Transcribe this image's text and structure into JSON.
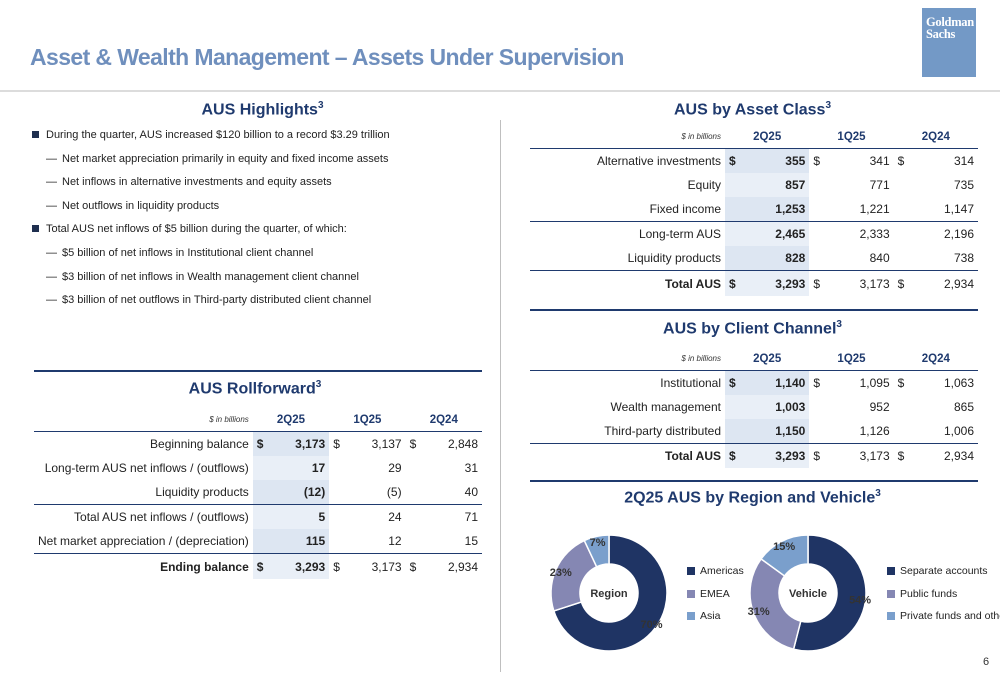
{
  "header": {
    "title": "Asset & Wealth Management – Assets Under Supervision",
    "logo_line1": "Goldman",
    "logo_line2": "Sachs"
  },
  "highlights": {
    "title": "AUS Highlights",
    "sup": "3",
    "items": [
      {
        "level": 1,
        "text": "During the quarter, AUS increased $120 billion to a record $3.29 trillion"
      },
      {
        "level": 2,
        "text": "Net market appreciation primarily in equity and fixed income assets"
      },
      {
        "level": 2,
        "text": "Net inflows in alternative investments and equity assets"
      },
      {
        "level": 2,
        "text": "Net outflows in liquidity products"
      },
      {
        "level": 1,
        "text": "Total AUS net inflows of $5 billion during the quarter, of which:"
      },
      {
        "level": 2,
        "text": "$5 billion of net inflows in Institutional client channel"
      },
      {
        "level": 2,
        "text": "$3 billion of net inflows in Wealth management client channel"
      },
      {
        "level": 2,
        "text": "$3 billion of net outflows in Third-party distributed client channel"
      }
    ]
  },
  "rollforward": {
    "title": "AUS Rollforward",
    "sup": "3",
    "units": "$ in billions",
    "columns": [
      "2Q25",
      "1Q25",
      "2Q24"
    ],
    "rows": [
      {
        "label": "Beginning balance",
        "cur": [
          "$",
          "$",
          "$"
        ],
        "values": [
          "3,173",
          "3,137",
          "2,848"
        ]
      },
      {
        "label": "Long-term AUS net inflows / (outflows)",
        "cur": [
          "",
          "",
          ""
        ],
        "values": [
          "17",
          "29",
          "31"
        ]
      },
      {
        "label": "Liquidity products",
        "cur": [
          "",
          "",
          ""
        ],
        "values": [
          "(12)",
          "(5)",
          "40"
        ]
      },
      {
        "label": "Total AUS net inflows / (outflows)",
        "cur": [
          "",
          "",
          ""
        ],
        "values": [
          "5",
          "24",
          "71"
        ]
      },
      {
        "label": "Net market appreciation / (depreciation)",
        "cur": [
          "",
          "",
          ""
        ],
        "values": [
          "115",
          "12",
          "15"
        ]
      },
      {
        "label": "Ending balance",
        "cur": [
          "$",
          "$",
          "$"
        ],
        "values": [
          "3,293",
          "3,173",
          "2,934"
        ]
      }
    ]
  },
  "asset_class": {
    "title": "AUS by Asset Class",
    "sup": "3",
    "units": "$ in billions",
    "columns": [
      "2Q25",
      "1Q25",
      "2Q24"
    ],
    "rows": [
      {
        "label": "Alternative investments",
        "cur": [
          "$",
          "$",
          "$"
        ],
        "values": [
          "355",
          "341",
          "314"
        ]
      },
      {
        "label": "Equity",
        "cur": [
          "",
          "",
          ""
        ],
        "values": [
          "857",
          "771",
          "735"
        ]
      },
      {
        "label": "Fixed income",
        "cur": [
          "",
          "",
          ""
        ],
        "values": [
          "1,253",
          "1,221",
          "1,147"
        ]
      },
      {
        "label": "Long-term AUS",
        "cur": [
          "",
          "",
          ""
        ],
        "values": [
          "2,465",
          "2,333",
          "2,196"
        ]
      },
      {
        "label": "Liquidity products",
        "cur": [
          "",
          "",
          ""
        ],
        "values": [
          "828",
          "840",
          "738"
        ]
      },
      {
        "label": "Total AUS",
        "cur": [
          "$",
          "$",
          "$"
        ],
        "values": [
          "3,293",
          "3,173",
          "2,934"
        ]
      }
    ]
  },
  "client_channel": {
    "title": "AUS by Client Channel",
    "sup": "3",
    "units": "$ in billions",
    "columns": [
      "2Q25",
      "1Q25",
      "2Q24"
    ],
    "rows": [
      {
        "label": "Institutional",
        "cur": [
          "$",
          "$",
          "$"
        ],
        "values": [
          "1,140",
          "1,095",
          "1,063"
        ]
      },
      {
        "label": "Wealth management",
        "cur": [
          "",
          "",
          ""
        ],
        "values": [
          "1,003",
          "952",
          "865"
        ]
      },
      {
        "label": "Third-party distributed",
        "cur": [
          "",
          "",
          ""
        ],
        "values": [
          "1,150",
          "1,126",
          "1,006"
        ]
      },
      {
        "label": "Total AUS",
        "cur": [
          "$",
          "$",
          "$"
        ],
        "values": [
          "3,293",
          "3,173",
          "2,934"
        ]
      }
    ]
  },
  "region_vehicle": {
    "title": "2Q25 AUS by Region and Vehicle",
    "sup": "3"
  },
  "chart_data": [
    {
      "type": "pie",
      "title": "Region",
      "categories": [
        "Americas",
        "EMEA",
        "Asia"
      ],
      "values": [
        70,
        23,
        7
      ],
      "labels": [
        "70%",
        "23%",
        "7%"
      ],
      "colors": [
        "#1f3464",
        "#8587b3",
        "#7a9fcc"
      ],
      "legend": "right"
    },
    {
      "type": "pie",
      "title": "Vehicle",
      "categories": [
        "Separate accounts",
        "Public funds",
        "Private funds and other"
      ],
      "values": [
        54,
        31,
        15
      ],
      "labels": [
        "54%",
        "31%",
        "15%"
      ],
      "colors": [
        "#1f3464",
        "#8587b3",
        "#7a9fcc"
      ],
      "legend": "right"
    }
  ],
  "footer": {
    "page_number": "6"
  }
}
